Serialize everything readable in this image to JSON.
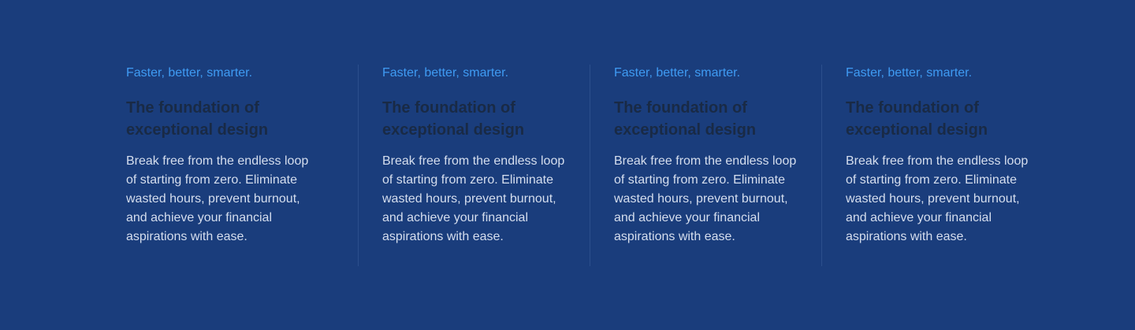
{
  "features": [
    {
      "eyebrow": "Faster, better, smarter.",
      "title": "The foundation of exceptional design",
      "body": "Break free from the endless loop of starting from zero. Eliminate wasted hours, prevent burnout, and achieve your financial aspirations with ease."
    },
    {
      "eyebrow": "Faster, better, smarter.",
      "title": "The foundation of exceptional design",
      "body": "Break free from the endless loop of starting from zero. Eliminate wasted hours, prevent burnout, and achieve your financial aspirations with ease."
    },
    {
      "eyebrow": "Faster, better, smarter.",
      "title": "The foundation of exceptional design",
      "body": "Break free from the endless loop of starting from zero. Eliminate wasted hours, prevent burnout, and achieve your financial aspirations with ease."
    },
    {
      "eyebrow": "Faster, better, smarter.",
      "title": "The foundation of exceptional design",
      "body": "Break free from the endless loop of starting from zero. Eliminate wasted hours, prevent burnout, and achieve your financial aspirations with ease."
    }
  ],
  "colors": {
    "background": "#1a3d7c",
    "accent": "#3f9bf3",
    "title": "#192a45",
    "body": "#d5deee",
    "divider": "#2b4f8c"
  }
}
